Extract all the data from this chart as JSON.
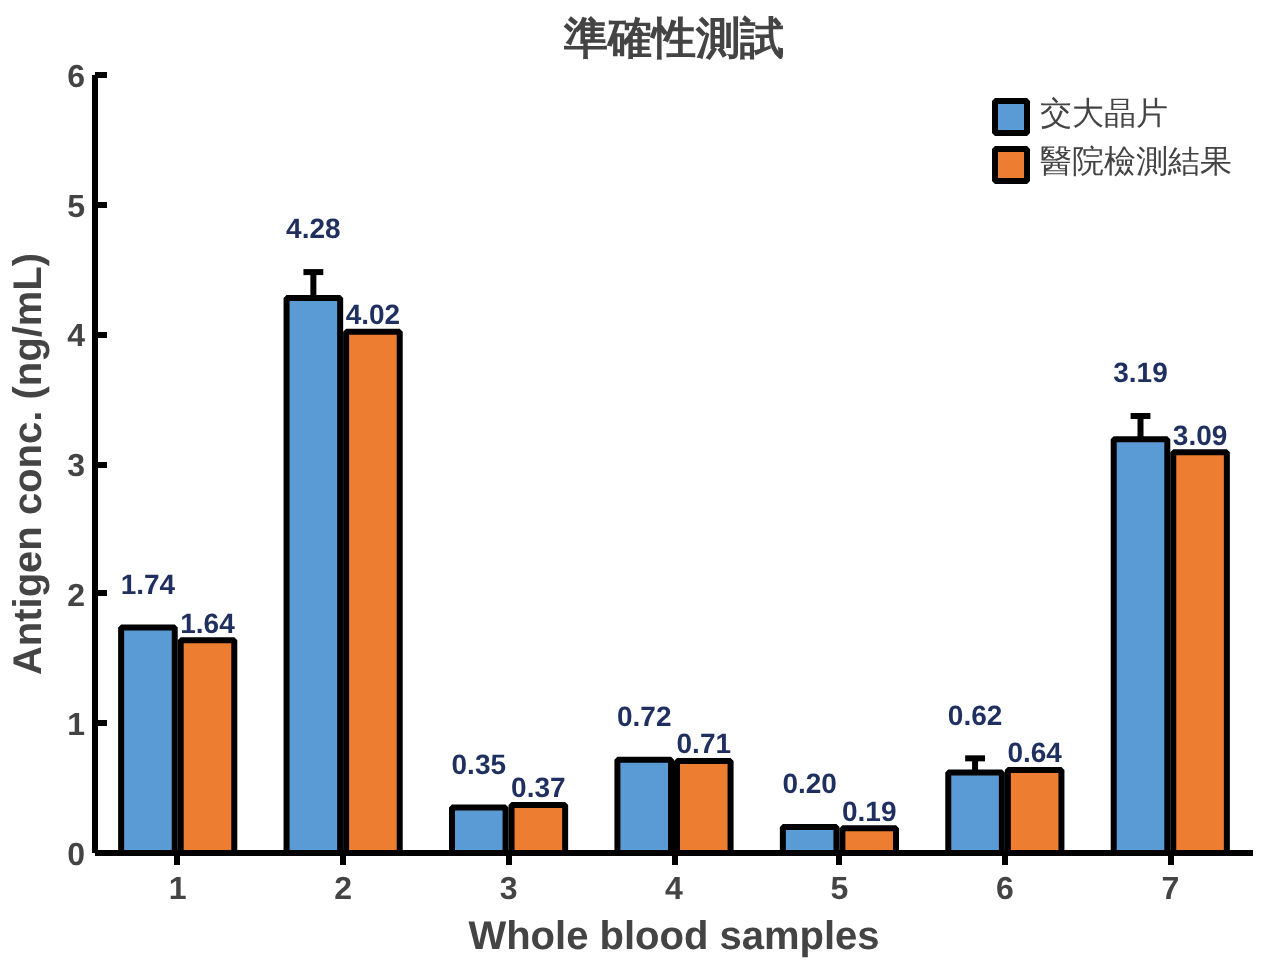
{
  "chart_data": {
    "type": "bar",
    "title": "準確性測試",
    "xlabel": "Whole blood samples",
    "ylabel": "Antigen conc. (ng/mL)",
    "categories": [
      "1",
      "2",
      "3",
      "4",
      "5",
      "6",
      "7"
    ],
    "series": [
      {
        "name": "交大晶片",
        "color": "#5b9bd5",
        "values": [
          1.74,
          4.28,
          0.35,
          0.72,
          0.2,
          0.62,
          3.19
        ],
        "errors": [
          null,
          0.2,
          null,
          null,
          null,
          0.11,
          0.18
        ],
        "value_labels": [
          "1.74",
          "4.28",
          "0.35",
          "0.72",
          "0.20",
          "0.62",
          "3.19"
        ]
      },
      {
        "name": "醫院檢測結果",
        "color": "#ed7d31",
        "values": [
          1.64,
          4.02,
          0.37,
          0.71,
          0.19,
          0.64,
          3.09
        ],
        "value_labels": [
          "1.64",
          "4.02",
          "0.37",
          "0.71",
          "0.19",
          "0.64",
          "3.09"
        ]
      }
    ],
    "ylim": [
      0,
      6
    ],
    "yticks": [
      0,
      1,
      2,
      3,
      4,
      5,
      6
    ],
    "grid": false,
    "legend": "top right"
  }
}
